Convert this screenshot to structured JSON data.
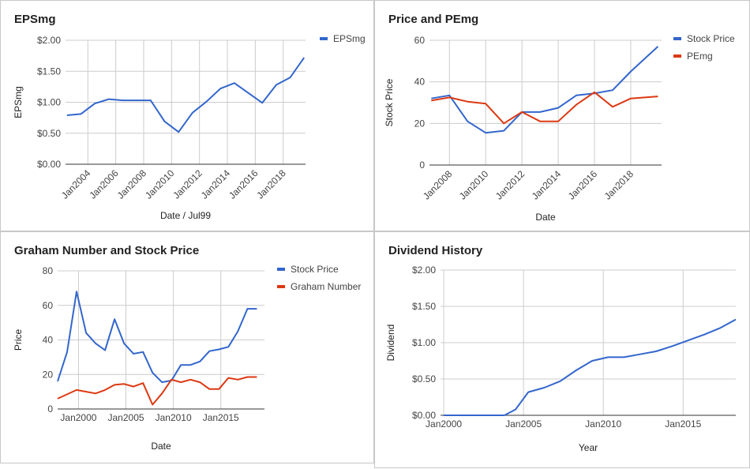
{
  "chart_data": [
    {
      "type": "line",
      "title": "EPSmg",
      "xlabel": "Date / Jul99",
      "ylabel": "EPSmg",
      "x_ticks": [
        "Jan2004",
        "Jan2006",
        "Jan2008",
        "Jan2010",
        "Jan2012",
        "Jan2014",
        "Jan2016",
        "Jan2018"
      ],
      "y_ticks": [
        "$0.00",
        "$0.50",
        "$1.00",
        "$1.50",
        "$2.00"
      ],
      "xlim": [
        2002.4,
        2019.6
      ],
      "ylim": [
        0,
        2
      ],
      "legend_position": "right",
      "series": [
        {
          "name": "EPSmg",
          "color": "#3366cc",
          "x": [
            2002.5,
            2003.5,
            2004.5,
            2005.5,
            2006.5,
            2007.5,
            2008.5,
            2009.5,
            2010.5,
            2011.5,
            2012.5,
            2013.5,
            2014.5,
            2015.5,
            2016.5,
            2017.5,
            2018.5,
            2019.5
          ],
          "values": [
            0.79,
            0.81,
            0.98,
            1.05,
            1.03,
            1.03,
            1.03,
            0.69,
            0.52,
            0.83,
            1.01,
            1.22,
            1.31,
            1.15,
            0.99,
            1.28,
            1.4,
            1.72
          ]
        }
      ]
    },
    {
      "type": "line",
      "title": "Price and PEmg",
      "xlabel": "Date",
      "ylabel": "Stock Price",
      "x_ticks": [
        "Jan2008",
        "Jan2010",
        "Jan2012",
        "Jan2014",
        "Jan2016",
        "Jan2018"
      ],
      "y_ticks": [
        "0",
        "20",
        "40",
        "60"
      ],
      "xlim": [
        2006.9,
        2019.7
      ],
      "ylim": [
        0,
        60
      ],
      "legend_position": "right",
      "series": [
        {
          "name": "Stock Price",
          "color": "#3366cc",
          "x": [
            2007.0,
            2008.0,
            2009.0,
            2010.0,
            2011.0,
            2012.0,
            2013.0,
            2014.0,
            2015.0,
            2016.0,
            2017.0,
            2018.0,
            2019.5
          ],
          "values": [
            32,
            33.5,
            21,
            15.5,
            16.5,
            25.5,
            25.5,
            27.5,
            33.5,
            34.5,
            36,
            45,
            57
          ]
        },
        {
          "name": "PEmg",
          "color": "#dc3912",
          "x": [
            2007.0,
            2008.0,
            2009.0,
            2010.0,
            2011.0,
            2012.0,
            2013.0,
            2014.0,
            2015.0,
            2016.0,
            2017.0,
            2018.0,
            2019.5
          ],
          "values": [
            31,
            32.5,
            30.5,
            29.5,
            20,
            25.5,
            21,
            21,
            29,
            35,
            28,
            32,
            33
          ]
        }
      ]
    },
    {
      "type": "line",
      "title": "Graham Number and Stock Price",
      "xlabel": "Date",
      "ylabel": "Price",
      "x_ticks": [
        "Jan2000",
        "Jan2005",
        "Jan2010",
        "Jan2015"
      ],
      "y_ticks": [
        "0",
        "20",
        "40",
        "60",
        "80"
      ],
      "xlim": [
        1997.8,
        2019.6
      ],
      "ylim": [
        0,
        80
      ],
      "legend_position": "right",
      "series": [
        {
          "name": "Stock Price",
          "color": "#3366cc",
          "x": [
            1997.8,
            1998.8,
            1999.8,
            2000.8,
            2001.8,
            2002.8,
            2003.8,
            2004.8,
            2005.8,
            2006.8,
            2007.8,
            2008.8,
            2009.8,
            2010.8,
            2011.8,
            2012.8,
            2013.8,
            2014.8,
            2015.8,
            2016.8,
            2017.8,
            2018.8
          ],
          "values": [
            16,
            33,
            68,
            44,
            38,
            34,
            52,
            38,
            32,
            33,
            21,
            15.5,
            16.5,
            25.5,
            25.5,
            27.5,
            33.5,
            34.5,
            36,
            45,
            58,
            58
          ]
        },
        {
          "name": "Graham Number",
          "color": "#dc3912",
          "x": [
            1997.8,
            1998.8,
            1999.8,
            2000.8,
            2001.8,
            2002.8,
            2003.8,
            2004.8,
            2005.8,
            2006.8,
            2007.8,
            2008.8,
            2009.8,
            2010.8,
            2011.8,
            2012.8,
            2013.8,
            2014.8,
            2015.8,
            2016.8,
            2017.8,
            2018.8
          ],
          "values": [
            6,
            8.5,
            11,
            10,
            9,
            11,
            14,
            14.5,
            13,
            15,
            2.5,
            9,
            17,
            15.5,
            17,
            15.5,
            11.5,
            11.5,
            18,
            17,
            18.5,
            18.5
          ]
        }
      ]
    },
    {
      "type": "line",
      "title": "Dividend History",
      "xlabel": "Year",
      "ylabel": "Dividend",
      "x_ticks": [
        "Jan2000",
        "Jan2005",
        "Jan2010",
        "Jan2015"
      ],
      "y_ticks": [
        "$0.00",
        "$0.50",
        "$1.00",
        "$1.50",
        "$2.00"
      ],
      "xlim": [
        1999.8,
        2018.3
      ],
      "ylim": [
        0,
        2
      ],
      "series": [
        {
          "name": "Dividend",
          "color": "#3366cc",
          "x": [
            2000.0,
            2001.0,
            2002.0,
            2003.0,
            2003.8,
            2004.5,
            2005.3,
            2006.3,
            2007.3,
            2008.3,
            2009.3,
            2010.3,
            2011.3,
            2012.3,
            2013.3,
            2014.3,
            2015.3,
            2016.3,
            2017.3,
            2018.3
          ],
          "values": [
            0,
            0,
            0,
            0,
            0,
            0.08,
            0.32,
            0.38,
            0.47,
            0.62,
            0.75,
            0.8,
            0.8,
            0.84,
            0.88,
            0.95,
            1.03,
            1.11,
            1.2,
            1.32
          ]
        }
      ]
    }
  ]
}
